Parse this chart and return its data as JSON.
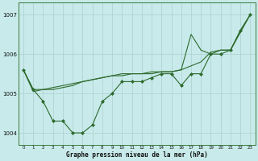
{
  "title": "Graphe pression niveau de la mer (hPa)",
  "bg_color": "#c8eaea",
  "grid_color": "#b0d4d4",
  "line_color": "#2d6a2d",
  "marker_color": "#2d6a2d",
  "hours": [
    0,
    1,
    2,
    3,
    4,
    5,
    6,
    7,
    8,
    9,
    10,
    11,
    12,
    13,
    14,
    15,
    16,
    17,
    18,
    19,
    20,
    21,
    22,
    23
  ],
  "series1": [
    1005.6,
    1005.1,
    1004.8,
    1004.3,
    1004.3,
    1004.0,
    1004.0,
    1004.2,
    1004.8,
    1005.0,
    1005.3,
    1005.3,
    1005.3,
    1005.4,
    1005.5,
    1005.5,
    1005.2,
    1005.5,
    1005.5,
    1006.0,
    1006.0,
    1006.1,
    1006.6,
    1007.0
  ],
  "series2": [
    1005.6,
    1005.1,
    1005.1,
    1005.1,
    1005.15,
    1005.2,
    1005.3,
    1005.35,
    1005.4,
    1005.45,
    1005.45,
    1005.5,
    1005.5,
    1005.5,
    1005.55,
    1005.55,
    1005.6,
    1006.5,
    1006.1,
    1006.0,
    1006.1,
    1006.1,
    1006.6,
    1007.0
  ],
  "series3": [
    1005.6,
    1005.05,
    1005.1,
    1005.15,
    1005.2,
    1005.25,
    1005.3,
    1005.35,
    1005.4,
    1005.45,
    1005.5,
    1005.5,
    1005.5,
    1005.55,
    1005.55,
    1005.55,
    1005.6,
    1005.7,
    1005.8,
    1006.05,
    1006.1,
    1006.1,
    1006.55,
    1007.0
  ],
  "ylim": [
    1003.7,
    1007.3
  ],
  "yticks": [
    1004,
    1005,
    1006,
    1007
  ],
  "xticks": [
    0,
    1,
    2,
    3,
    4,
    5,
    6,
    7,
    8,
    9,
    10,
    11,
    12,
    13,
    14,
    15,
    16,
    17,
    18,
    19,
    20,
    21,
    22,
    23
  ],
  "figsize": [
    3.2,
    2.0
  ],
  "dpi": 100
}
